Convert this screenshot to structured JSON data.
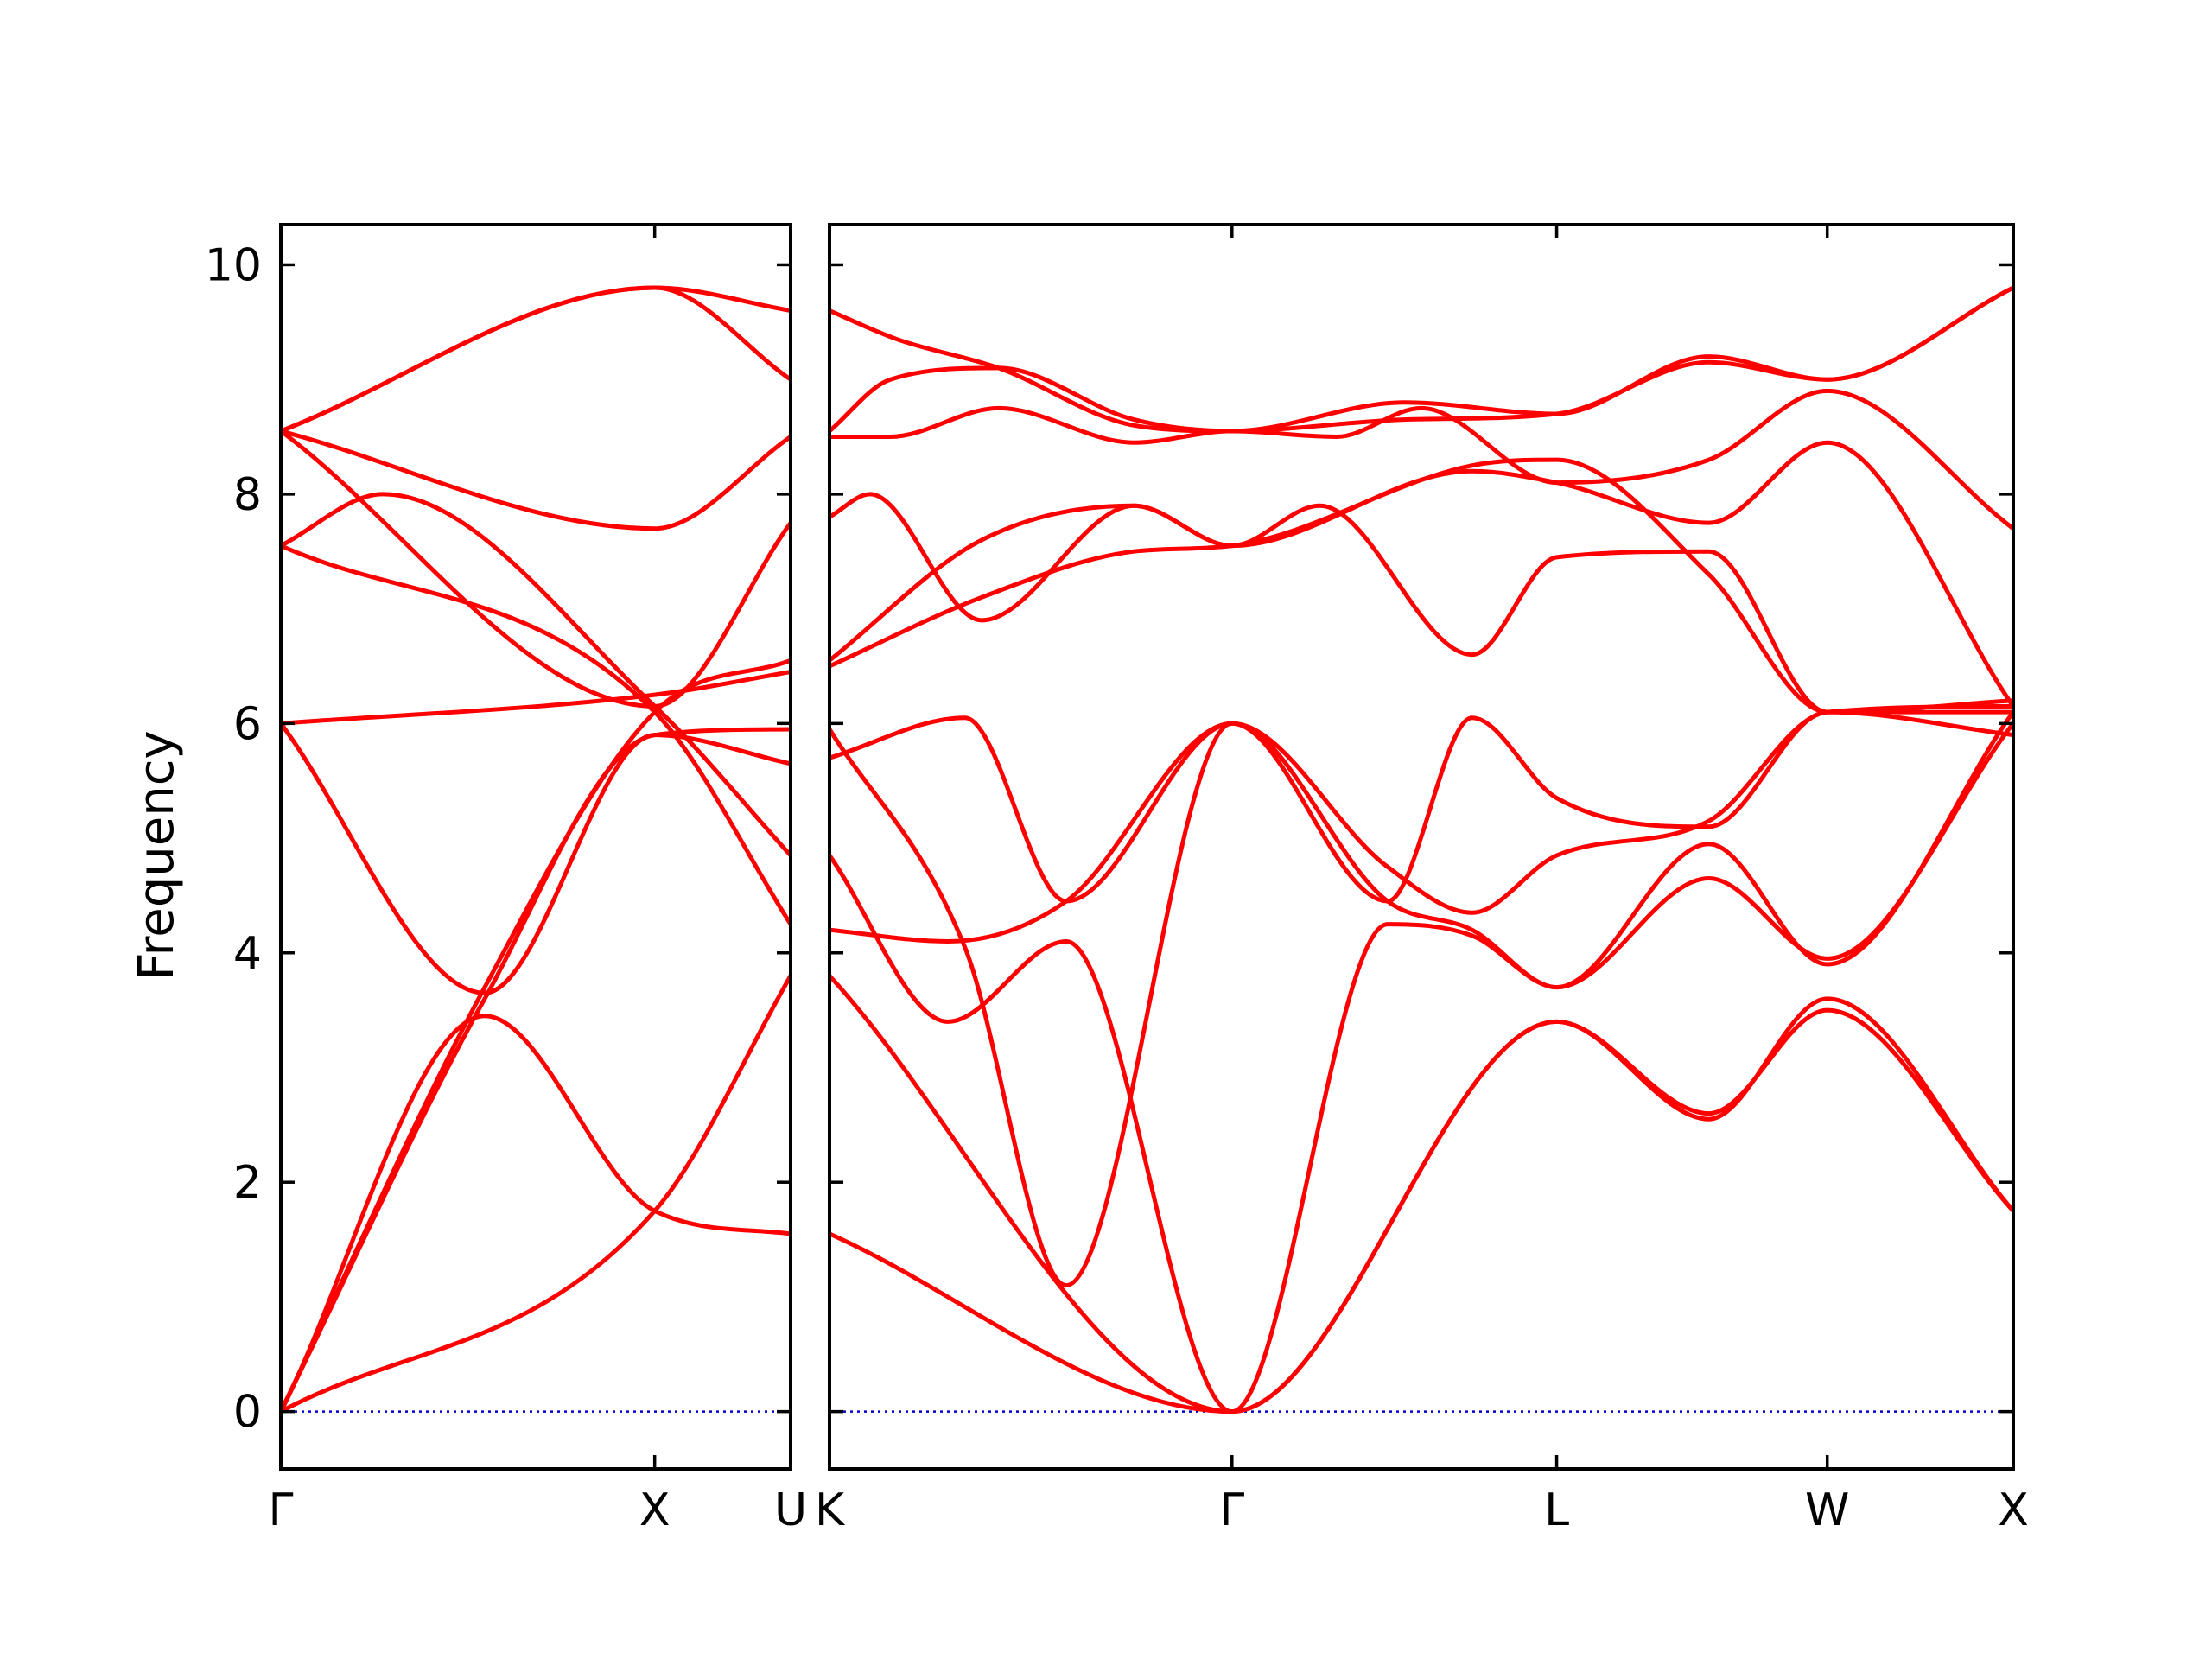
{
  "chart_data": {
    "type": "line",
    "ylabel": "Frequency",
    "ylim": [
      -0.5,
      10.35
    ],
    "yticks": [
      0,
      2,
      4,
      6,
      8,
      10
    ],
    "band_color": "#ff0000",
    "zero_line_color": "#0000cc",
    "panels": [
      {
        "xlim": [
          0,
          1.5
        ],
        "xticks": [
          {
            "pos": 0,
            "label": "Γ"
          },
          {
            "pos": 1.1,
            "label": "X"
          },
          {
            "pos": 1.5,
            "label": "U"
          }
        ],
        "bands": [
          {
            "x": [
              0,
              0.6,
              1.1,
              1.5
            ],
            "y": [
              0,
              3.7,
              6.1,
              6.55
            ]
          },
          {
            "x": [
              0,
              0.6,
              1.1,
              1.5
            ],
            "y": [
              0,
              3.45,
              1.75,
              1.55
            ]
          },
          {
            "x": [
              0,
              0.6,
              1.1,
              1.5
            ],
            "y": [
              0,
              3.6,
              5.9,
              5.95
            ]
          },
          {
            "x": [
              0,
              0.6,
              1.1,
              1.5
            ],
            "y": [
              6.0,
              3.65,
              5.9,
              5.65
            ]
          },
          {
            "x": [
              0,
              1.1,
              1.5
            ],
            "y": [
              6.0,
              6.25,
              6.45
            ]
          },
          {
            "x": [
              0,
              0.3,
              1.1,
              1.5
            ],
            "y": [
              7.55,
              8.0,
              6.15,
              4.85
            ]
          },
          {
            "x": [
              0,
              1.1,
              1.5
            ],
            "y": [
              7.55,
              6.1,
              4.25
            ]
          },
          {
            "x": [
              0,
              1.1,
              1.5
            ],
            "y": [
              8.55,
              7.7,
              8.5
            ]
          },
          {
            "x": [
              0,
              1.1,
              1.5
            ],
            "y": [
              8.55,
              9.8,
              9.6
            ]
          },
          {
            "x": [
              0,
              1.1,
              1.5
            ],
            "y": [
              0,
              1.75,
              3.8
            ]
          },
          {
            "x": [
              0,
              1.1,
              1.5
            ],
            "y": [
              8.55,
              6.15,
              7.75
            ]
          },
          {
            "x": [
              0,
              1.1,
              1.5
            ],
            "y": [
              8.55,
              9.8,
              9.0
            ]
          }
        ]
      },
      {
        "xlim": [
          0,
          3.5
        ],
        "xticks": [
          {
            "pos": 0,
            "label": "K"
          },
          {
            "pos": 1.19,
            "label": "Γ"
          },
          {
            "pos": 2.15,
            "label": "L"
          },
          {
            "pos": 2.95,
            "label": "W"
          },
          {
            "pos": 3.5,
            "label": "X"
          }
        ],
        "bands": [
          {
            "x": [
              0,
              1.19,
              2.15,
              2.6,
              2.95,
              3.5
            ],
            "y": [
              1.55,
              0,
              3.4,
              2.6,
              3.5,
              1.75
            ]
          },
          {
            "x": [
              0,
              1.19,
              2.15,
              2.6,
              2.95,
              3.5
            ],
            "y": [
              3.8,
              0,
              3.4,
              2.55,
              3.6,
              1.75
            ]
          },
          {
            "x": [
              0,
              0.35,
              0.7,
              1.19,
              1.65,
              1.9,
              2.15,
              2.6,
              2.95,
              3.5
            ],
            "y": [
              4.2,
              4.1,
              4.45,
              6.0,
              4.45,
              4.2,
              3.7,
              4.95,
              3.9,
              6.1
            ]
          },
          {
            "x": [
              0,
              0.35,
              0.7,
              1.19,
              1.65,
              1.9,
              2.15,
              2.6,
              2.95,
              3.5
            ],
            "y": [
              4.85,
              3.4,
              4.1,
              0,
              4.25,
              4.15,
              3.7,
              4.65,
              3.95,
              6.0
            ]
          },
          {
            "x": [
              0,
              0.4,
              0.7,
              1.19,
              1.65,
              1.9,
              2.15,
              2.6,
              2.95,
              3.5
            ],
            "y": [
              5.7,
              6.05,
              4.45,
              6.0,
              4.45,
              6.05,
              5.35,
              5.1,
              6.1,
              5.9
            ]
          },
          {
            "x": [
              0,
              0.4,
              0.7,
              1.19,
              1.65,
              1.9,
              2.15,
              2.6,
              2.95,
              3.5
            ],
            "y": [
              5.95,
              4.05,
              1.1,
              6.0,
              4.75,
              4.35,
              4.85,
              5.15,
              6.1,
              6.15
            ]
          },
          {
            "x": [
              0,
              0.12,
              0.45,
              0.9,
              1.19,
              1.45,
              1.9,
              2.15,
              2.6,
              2.95,
              3.5
            ],
            "y": [
              7.8,
              8.0,
              6.9,
              7.9,
              7.55,
              7.9,
              6.6,
              7.45,
              7.5,
              6.1,
              6.2
            ]
          },
          {
            "x": [
              0,
              0.45,
              0.9,
              1.19,
              1.9,
              2.15,
              2.6,
              2.95,
              3.5
            ],
            "y": [
              6.5,
              7.1,
              7.5,
              7.55,
              8.25,
              8.3,
              7.3,
              6.1,
              6.1
            ]
          },
          {
            "x": [
              0,
              0.45,
              0.9,
              1.19,
              1.9,
              2.15,
              2.6,
              2.95,
              3.5
            ],
            "y": [
              6.55,
              7.6,
              7.9,
              7.55,
              8.2,
              8.1,
              7.75,
              8.45,
              6.15
            ]
          },
          {
            "x": [
              0,
              0.18,
              0.5,
              0.9,
              1.19,
              1.5,
              1.75,
              2.15,
              2.6,
              2.95,
              3.5
            ],
            "y": [
              8.5,
              8.5,
              8.75,
              8.45,
              8.55,
              8.5,
              8.75,
              8.1,
              8.3,
              8.9,
              7.7
            ]
          },
          {
            "x": [
              0,
              0.2,
              0.5,
              0.9,
              1.19,
              1.7,
              2.15,
              2.6,
              2.95,
              3.5
            ],
            "y": [
              9.6,
              9.35,
              9.1,
              8.6,
              8.55,
              8.65,
              8.7,
              9.15,
              9.0,
              9.8
            ]
          },
          {
            "x": [
              0,
              0.18,
              0.5,
              0.9,
              1.19,
              1.7,
              2.15,
              2.6,
              2.95,
              3.5
            ],
            "y": [
              8.55,
              9.0,
              9.1,
              8.65,
              8.55,
              8.8,
              8.7,
              9.2,
              9.0,
              9.8
            ]
          }
        ]
      }
    ]
  }
}
